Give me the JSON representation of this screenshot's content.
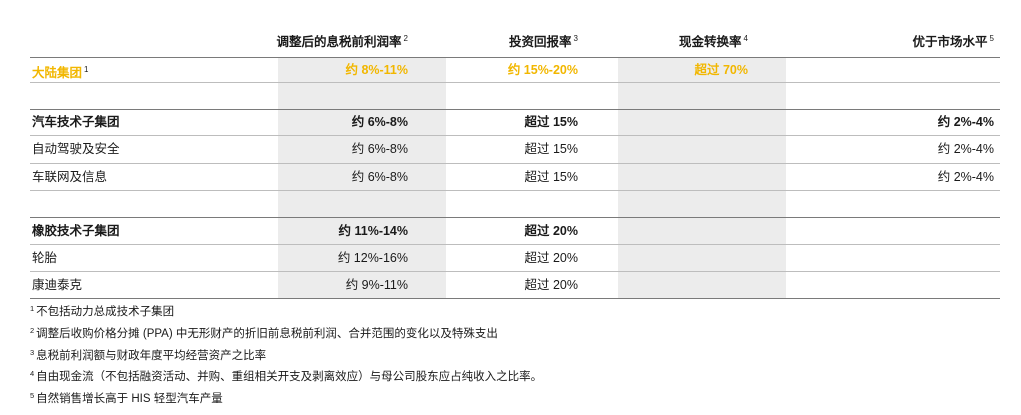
{
  "header": {
    "col1": "调整后的息税前利润率",
    "col1_sup": "2",
    "col2": "投资回报率",
    "col2_sup": "3",
    "col3": "现金转换率",
    "col3_sup": "4",
    "col4": "优于市场水平",
    "col4_sup": "5"
  },
  "group": {
    "label": "大陆集团",
    "sup": "1",
    "v1": "约 8%-11%",
    "v2": "约 15%-20%",
    "v3": "超过 70%",
    "v4": "",
    "color": "#f2b700"
  },
  "auto": {
    "label": "汽车技术子集团",
    "v1": "约 6%-8%",
    "v2": "超过 15%",
    "v4": "约 2%-4%",
    "rows": [
      {
        "label": "自动驾驶及安全",
        "v1": "约 6%-8%",
        "v2": "超过 15%",
        "v4": "约 2%-4%"
      },
      {
        "label": "车联网及信息",
        "v1": "约 6%-8%",
        "v2": "超过 15%",
        "v4": "约 2%-4%"
      }
    ]
  },
  "rubber": {
    "label": "橡胶技术子集团",
    "v1": "约 11%-14%",
    "v2": "超过 20%",
    "rows": [
      {
        "label": "轮胎",
        "v1": "约 12%-16%",
        "v2": "超过 20%"
      },
      {
        "label": "康迪泰克",
        "v1": "约 9%-11%",
        "v2": "超过 20%"
      }
    ]
  },
  "notes": [
    {
      "sup": "1",
      "text": "不包括动力总成技术子集团"
    },
    {
      "sup": "2",
      "text": "调整后收购价格分摊 (PPA) 中无形财产的折旧前息税前利润、合并范围的变化以及特殊支出"
    },
    {
      "sup": "3",
      "text": "息税前利润额与财政年度平均经营资产之比率"
    },
    {
      "sup": "4",
      "text": "自由现金流（不包括融资活动、并购、重组相关开支及剥离效应）与母公司股东应占纯收入之比率。"
    },
    {
      "sup": "5",
      "text": "自然销售增长高于 HIS 轻型汽车产量"
    }
  ]
}
